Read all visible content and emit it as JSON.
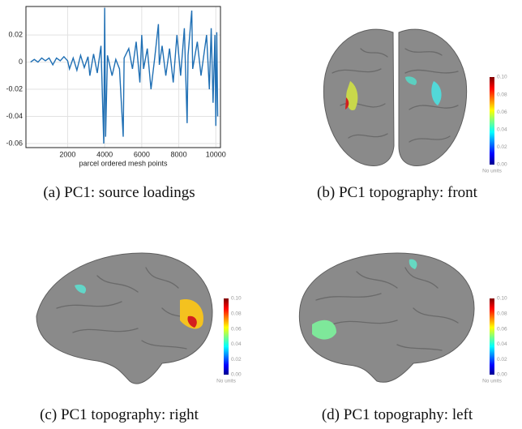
{
  "chart_data": {
    "type": "line",
    "x_label": "parcel ordered mesh points",
    "x": [
      0,
      200,
      400,
      600,
      800,
      1000,
      1200,
      1400,
      1600,
      1800,
      2000,
      2100,
      2300,
      2500,
      2700,
      2900,
      3100,
      3200,
      3400,
      3600,
      3800,
      3950,
      4000,
      4050,
      4150,
      4400,
      4600,
      4800,
      5000,
      5050,
      5300,
      5500,
      5700,
      5900,
      6000,
      6100,
      6300,
      6500,
      6700,
      6900,
      6950,
      7100,
      7300,
      7500,
      7700,
      7900,
      8100,
      8300,
      8450,
      8500,
      8700,
      8750,
      9000,
      9200,
      9500,
      9650,
      9750,
      9850,
      9950,
      10000,
      10050,
      10100
    ],
    "series": [
      {
        "color": "#1f6fb4",
        "values": [
          0,
          0.002,
          0,
          0.003,
          0.001,
          0.003,
          -0.002,
          0.003,
          0.001,
          0.004,
          0.001,
          -0.005,
          0.003,
          -0.006,
          0.005,
          -0.004,
          0.004,
          -0.01,
          0.006,
          -0.008,
          0.012,
          -0.06,
          0.04,
          -0.055,
          0.005,
          -0.01,
          0.002,
          -0.005,
          -0.055,
          0.003,
          0.01,
          -0.005,
          0.015,
          -0.015,
          0.02,
          -0.005,
          0.01,
          -0.02,
          0.003,
          0.028,
          -0.002,
          0.012,
          -0.01,
          0.01,
          -0.015,
          0.02,
          -0.01,
          0.025,
          -0.045,
          0.005,
          0.038,
          -0.005,
          0.015,
          -0.01,
          0.02,
          -0.02,
          0.025,
          -0.03,
          0.02,
          -0.047,
          0.022,
          -0.04
        ]
      }
    ],
    "xlim": [
      -250,
      10250
    ],
    "xticks": [
      2000,
      4000,
      6000,
      8000,
      10000
    ],
    "ylim": [
      -0.063,
      0.041
    ],
    "yticks": [
      0.02,
      0,
      -0.02,
      -0.04,
      -0.06
    ],
    "grid": true
  },
  "captions": [
    "(a) PC1: source loadings",
    "(b) PC1 topography: front",
    "(c) PC1 topography: right",
    "(d) PC1 topography: left"
  ],
  "colorbar": {
    "ticks": [
      {
        "value": 0.1,
        "label": "0.10"
      },
      {
        "value": 0.08,
        "label": "0.08"
      },
      {
        "value": 0.06,
        "label": "0.06"
      },
      {
        "value": 0.04,
        "label": "0.04"
      },
      {
        "value": 0.02,
        "label": "0.02"
      },
      {
        "value": 0,
        "label": "0.00"
      }
    ],
    "unit_label": "No units"
  }
}
